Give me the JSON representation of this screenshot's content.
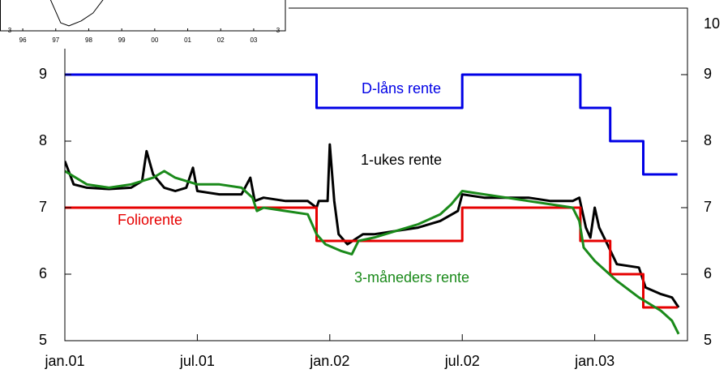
{
  "chart_data": [
    {
      "type": "line",
      "x_ticks_note_free": null,
      "xlim": [
        0,
        28.2
      ],
      "xticks": [
        {
          "value": 0,
          "label": "jan.01"
        },
        {
          "value": 6,
          "label": "jul.01"
        },
        {
          "value": 12,
          "label": "jan.02"
        },
        {
          "value": 18,
          "label": "jul.02"
        },
        {
          "value": 24,
          "label": "jan.03"
        }
      ],
      "ylim": [
        5,
        10
      ],
      "yticks": [
        5,
        6,
        7,
        8,
        9
      ],
      "y2lim": [
        5,
        10
      ],
      "y2ticks": [
        5,
        6,
        7,
        8,
        9,
        10
      ],
      "series": [
        {
          "name": "D-låns rente",
          "color": "#0000e6",
          "x": [
            0,
            11.4,
            11.4,
            18,
            18,
            23.35,
            23.35,
            24.7,
            24.7,
            26.2,
            26.2,
            27.75
          ],
          "values": [
            9,
            9,
            8.5,
            8.5,
            9,
            9,
            8.5,
            8.5,
            8,
            8,
            7.5,
            7.5
          ]
        },
        {
          "name": "1-ukes rente",
          "color": "#000000",
          "x": [
            0,
            0.4,
            1,
            2,
            3,
            3.5,
            3.7,
            4,
            4.5,
            5,
            5.5,
            5.8,
            6,
            7,
            8,
            8.4,
            8.6,
            9,
            10,
            11,
            11.4,
            11.5,
            11.9,
            12,
            12.2,
            12.4,
            12.8,
            13.5,
            14,
            15,
            16,
            17,
            17.8,
            18,
            19,
            20,
            21,
            22,
            23,
            23.3,
            23.6,
            23.8,
            24,
            24.2,
            24.5,
            25,
            26,
            26.3,
            27,
            27.5,
            27.8
          ],
          "values": [
            7.7,
            7.35,
            7.3,
            7.28,
            7.3,
            7.4,
            7.85,
            7.5,
            7.3,
            7.25,
            7.3,
            7.6,
            7.25,
            7.2,
            7.2,
            7.45,
            7.1,
            7.15,
            7.1,
            7.1,
            7.0,
            7.1,
            7.1,
            7.95,
            7.1,
            6.6,
            6.45,
            6.6,
            6.6,
            6.65,
            6.7,
            6.8,
            6.95,
            7.2,
            7.15,
            7.15,
            7.15,
            7.1,
            7.1,
            7.15,
            6.7,
            6.55,
            7.0,
            6.7,
            6.5,
            6.15,
            6.1,
            5.8,
            5.7,
            5.65,
            5.5
          ]
        },
        {
          "name": "Foliorente",
          "color": "#e60000",
          "x": [
            0,
            11.4,
            11.4,
            18,
            18,
            23.35,
            23.35,
            24.7,
            24.7,
            26.2,
            26.2,
            27.75
          ],
          "values": [
            7,
            7,
            6.5,
            6.5,
            7,
            7,
            6.5,
            6.5,
            6,
            6,
            5.5,
            5.5
          ]
        },
        {
          "name": "3-måneders rente",
          "color": "#1a8a1a",
          "x": [
            0,
            1,
            2,
            3,
            4,
            4.5,
            5,
            6,
            7,
            8,
            8.5,
            8.7,
            9,
            10,
            11,
            11.4,
            11.8,
            12.5,
            13,
            13.3,
            14,
            15,
            16,
            17,
            17.5,
            18,
            19,
            20,
            21,
            22,
            23,
            23.3,
            23.5,
            24,
            25,
            26,
            26.5,
            27,
            27.5,
            27.8
          ],
          "values": [
            7.55,
            7.35,
            7.3,
            7.35,
            7.45,
            7.55,
            7.45,
            7.35,
            7.35,
            7.3,
            7.15,
            6.95,
            7.0,
            6.95,
            6.9,
            6.6,
            6.45,
            6.35,
            6.3,
            6.5,
            6.55,
            6.65,
            6.75,
            6.9,
            7.05,
            7.25,
            7.2,
            7.15,
            7.1,
            7.05,
            7.0,
            6.8,
            6.4,
            6.2,
            5.9,
            5.65,
            5.55,
            5.45,
            5.3,
            5.1
          ]
        }
      ]
    },
    {
      "type": "line",
      "xlim": [
        1995.31,
        2003.96
      ],
      "xticks": [
        {
          "value": 1996,
          "label": "96"
        },
        {
          "value": 1997,
          "label": "97"
        },
        {
          "value": 1998,
          "label": "98"
        },
        {
          "value": 1999,
          "label": "99"
        },
        {
          "value": 2000,
          "label": "00"
        },
        {
          "value": 2001,
          "label": "01"
        },
        {
          "value": 2002,
          "label": "02"
        },
        {
          "value": 2003,
          "label": "03"
        }
      ],
      "ylim": [
        3,
        7
      ],
      "yticks": [
        3
      ],
      "y2ticks": [
        3
      ],
      "series": [
        {
          "color": "#000000",
          "x": [
            1996.83,
            1997.15,
            1997.4,
            1997.77,
            1998.13,
            1998.45
          ],
          "values": [
            4.6,
            3.4,
            3.25,
            3.5,
            3.9,
            4.6
          ]
        }
      ]
    }
  ]
}
